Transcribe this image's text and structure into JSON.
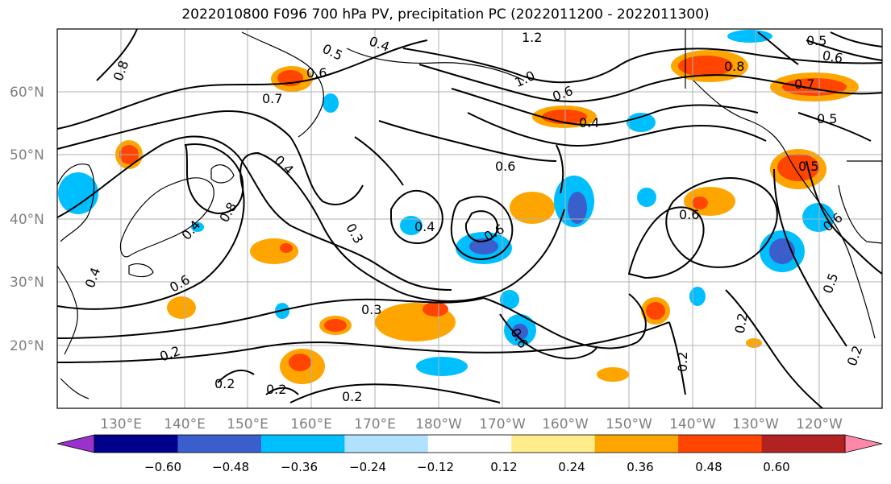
{
  "title": "2022010800 F096 700 hPa PV, precipitation PC (2022011200 - 2022011300)",
  "map": {
    "lat_labels": [
      "60°N",
      "50°N",
      "40°N",
      "30°N",
      "20°N"
    ],
    "lon_labels": [
      "130°E",
      "140°E",
      "150°E",
      "160°E",
      "170°E",
      "180°W",
      "170°W",
      "160°W",
      "150°W",
      "140°W",
      "130°W",
      "120°W"
    ],
    "pv_contour_labels": [
      "0.8",
      "0.5",
      "0.4",
      "1.2",
      "0.5",
      "0.6",
      "0.6",
      "0.7",
      "0.8",
      "1.0",
      "0.6",
      "0.7",
      "0.4",
      "0.5",
      "0.6",
      "0.4",
      "0.8",
      "0.4",
      "0.6",
      "0.3",
      "0.4",
      "0.6",
      "0.6",
      "0.5",
      "0.6",
      "0.4",
      "0.6",
      "0.3",
      "0.2",
      "0.2",
      "0.2",
      "0.2",
      "0.2",
      "0.2",
      "0.5",
      "0.2"
    ]
  },
  "colorbar": {
    "tick_labels": [
      "−0.60",
      "−0.48",
      "−0.36",
      "−0.24",
      "−0.12",
      "0.12",
      "0.24",
      "0.36",
      "0.48",
      "0.60"
    ],
    "colors": [
      "#9932cc",
      "#00008b",
      "#3a5fcd",
      "#00bfff",
      "#b0e2ff",
      "#ffffff",
      "#ffec8b",
      "#ffa500",
      "#ff4500",
      "#b22222",
      "#ff88aa"
    ]
  }
}
